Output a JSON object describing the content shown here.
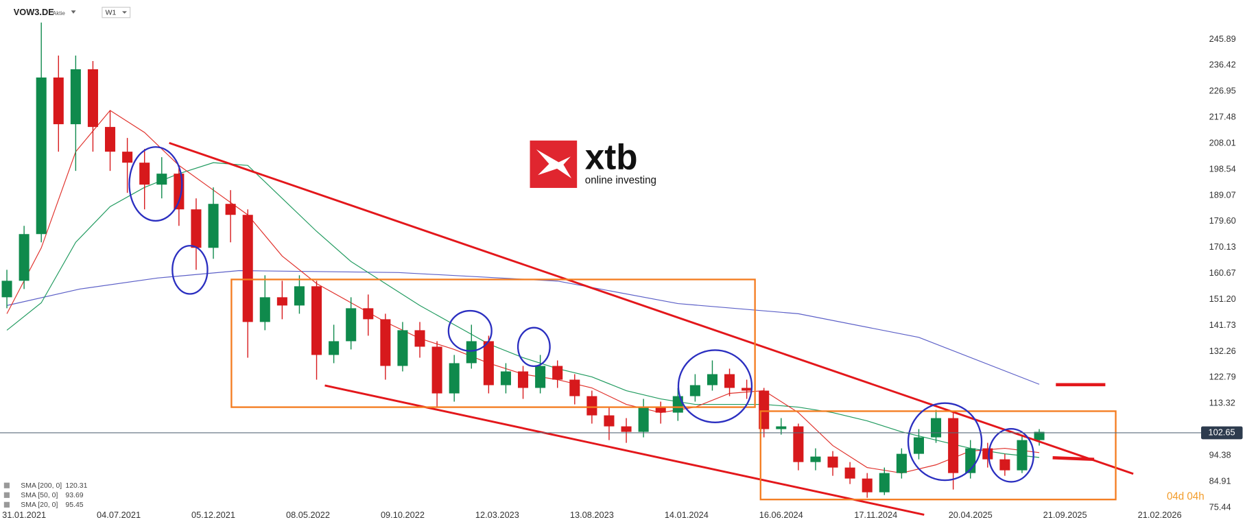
{
  "header": {
    "symbol": "VOW3.DE",
    "kind": "Aktie",
    "interval": "W1"
  },
  "watermark": {
    "brand": "xtb",
    "tagline": "online investing"
  },
  "chart_data": {
    "type": "candlestick",
    "up_color": "#0f8a4c",
    "down_color": "#d7191c",
    "x": [
      -4,
      0,
      4,
      8,
      12,
      16,
      20,
      24,
      28,
      32,
      36,
      40,
      44,
      48,
      52,
      56,
      60,
      64,
      68,
      72,
      76,
      80,
      84,
      88,
      92,
      96,
      100,
      104,
      108,
      112,
      116,
      120,
      124,
      128,
      132,
      136,
      140,
      144,
      148,
      152,
      156,
      160,
      164,
      168,
      172,
      176,
      180,
      184,
      188,
      192,
      196,
      200,
      204,
      208,
      212,
      216,
      220,
      224,
      228,
      232,
      236
    ],
    "candles": [
      [
        152,
        162,
        148,
        158
      ],
      [
        158,
        178,
        155,
        175
      ],
      [
        175,
        252,
        172,
        232
      ],
      [
        232,
        240,
        205,
        215
      ],
      [
        215,
        240,
        198,
        235
      ],
      [
        235,
        238,
        205,
        214
      ],
      [
        214,
        220,
        198,
        205
      ],
      [
        205,
        210,
        190,
        201
      ],
      [
        201,
        206,
        184,
        193
      ],
      [
        193,
        203,
        188,
        197
      ],
      [
        197,
        199,
        178,
        184
      ],
      [
        184,
        188,
        162,
        170
      ],
      [
        170,
        192,
        166,
        186
      ],
      [
        186,
        191,
        172,
        182
      ],
      [
        182,
        184,
        130,
        143
      ],
      [
        143,
        160,
        140,
        152
      ],
      [
        152,
        158,
        144,
        149
      ],
      [
        149,
        160,
        146,
        156
      ],
      [
        156,
        158,
        122,
        131
      ],
      [
        131,
        142,
        128,
        136
      ],
      [
        136,
        152,
        133,
        148
      ],
      [
        148,
        153,
        138,
        144
      ],
      [
        144,
        146,
        122,
        127
      ],
      [
        127,
        143,
        125,
        140
      ],
      [
        140,
        143,
        130,
        134
      ],
      [
        134,
        136,
        112,
        117
      ],
      [
        117,
        131,
        114,
        128
      ],
      [
        128,
        142,
        126,
        136
      ],
      [
        136,
        138,
        117,
        120
      ],
      [
        120,
        128,
        117,
        125
      ],
      [
        125,
        127,
        115,
        119
      ],
      [
        119,
        131,
        117,
        127
      ],
      [
        127,
        129,
        119,
        122
      ],
      [
        122,
        124,
        113,
        116
      ],
      [
        116,
        118,
        106,
        109
      ],
      [
        109,
        112,
        100,
        105
      ],
      [
        105,
        108,
        99,
        103
      ],
      [
        103,
        115,
        101,
        112
      ],
      [
        112,
        114,
        106,
        110
      ],
      [
        110,
        119,
        107,
        116
      ],
      [
        116,
        124,
        114,
        120
      ],
      [
        120,
        129,
        118,
        124
      ],
      [
        124,
        126,
        116,
        119
      ],
      [
        119,
        122,
        115,
        118
      ],
      [
        118,
        119,
        101,
        104
      ],
      [
        104,
        108,
        102,
        105
      ],
      [
        105,
        106,
        89,
        92
      ],
      [
        92,
        97,
        89,
        94
      ],
      [
        94,
        96,
        87,
        90
      ],
      [
        90,
        92,
        84,
        86
      ],
      [
        86,
        88,
        79,
        81
      ],
      [
        81,
        90,
        80,
        88
      ],
      [
        88,
        97,
        86,
        95
      ],
      [
        95,
        104,
        93,
        101
      ],
      [
        101,
        111,
        99,
        108
      ],
      [
        108,
        110,
        82,
        88
      ],
      [
        88,
        100,
        86,
        97
      ],
      [
        97,
        99,
        90,
        93
      ],
      [
        93,
        95,
        87,
        89
      ],
      [
        89,
        102,
        88,
        100
      ],
      [
        100,
        104,
        98,
        103
      ]
    ],
    "series": [
      {
        "name": "SMA [200, 0]",
        "color": "#5b5fc7",
        "x": [
          -4,
          13,
          31,
          50,
          87,
          124,
          152,
          180,
          208,
          236
        ],
        "values": [
          149,
          155,
          159,
          161.7,
          161,
          157.9,
          149.7,
          146,
          137.4,
          120.31
        ]
      },
      {
        "name": "SMA [50, 0]",
        "color": "#1f9a5e",
        "x": [
          -4,
          4,
          12,
          20,
          28,
          36,
          44,
          52,
          60,
          68,
          76,
          84,
          92,
          100,
          108,
          116,
          124,
          132,
          140,
          148,
          156,
          164,
          172,
          180,
          188,
          196,
          204,
          212,
          220,
          228,
          236
        ],
        "values": [
          140,
          150,
          172,
          185,
          192,
          197,
          201,
          200,
          188,
          176,
          165,
          157,
          149,
          142,
          135,
          130,
          126,
          123,
          118,
          115,
          113,
          113,
          113,
          112,
          110,
          107,
          103,
          100,
          97,
          95,
          93.69
        ]
      },
      {
        "name": "SMA [20, 0]",
        "color": "#e0302a",
        "x": [
          -4,
          4,
          12,
          20,
          28,
          36,
          44,
          52,
          60,
          68,
          76,
          84,
          92,
          100,
          108,
          116,
          124,
          132,
          140,
          148,
          156,
          164,
          172,
          180,
          188,
          196,
          204,
          212,
          220,
          228,
          236
        ],
        "values": [
          146,
          170,
          205,
          220,
          212,
          200,
          191,
          182,
          167,
          157,
          150,
          143,
          137,
          133,
          128,
          124,
          122,
          119,
          113,
          110,
          112,
          117,
          118,
          110,
          98,
          90,
          88,
          91,
          96,
          97,
          95.45
        ]
      }
    ],
    "last_price": 102.65,
    "countdown": "04d 04h",
    "xlim": [
      -5.6,
      272.7
    ],
    "ylim": [
      70.18,
      260.22
    ],
    "xticks": [
      {
        "value": 0,
        "label": "31.01.2021"
      },
      {
        "value": 22,
        "label": "04.07.2021"
      },
      {
        "value": 44,
        "label": "05.12.2021"
      },
      {
        "value": 66,
        "label": "08.05.2022"
      },
      {
        "value": 88,
        "label": "09.10.2022"
      },
      {
        "value": 110,
        "label": "12.03.2023"
      },
      {
        "value": 132,
        "label": "13.08.2023"
      },
      {
        "value": 154,
        "label": "14.01.2024"
      },
      {
        "value": 176,
        "label": "16.06.2024"
      },
      {
        "value": 198,
        "label": "17.11.2024"
      },
      {
        "value": 220,
        "label": "20.04.2025"
      },
      {
        "value": 242,
        "label": "21.09.2025"
      },
      {
        "value": 264,
        "label": "21.02.2026"
      }
    ],
    "yticks": [
      245.89,
      236.42,
      226.95,
      217.48,
      208.01,
      198.54,
      189.07,
      {
        "value": 179.6,
        "label": "179.60"
      },
      170.13,
      160.67,
      {
        "value": 151.2,
        "label": "151.20"
      },
      141.73,
      132.26,
      122.79,
      113.32,
      94.38,
      84.91,
      75.44
    ]
  }
}
